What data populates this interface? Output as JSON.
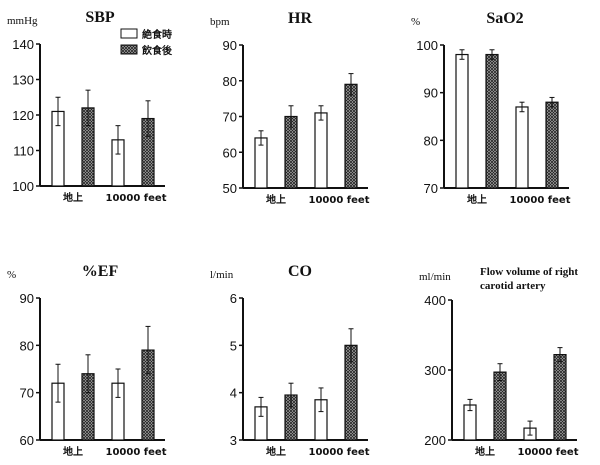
{
  "chart_data": [
    {
      "type": "bar",
      "title": "SBP",
      "ylabel": "mmHg",
      "ylim": [
        100,
        140
      ],
      "yticks": [
        100,
        110,
        120,
        130,
        140
      ],
      "categories": [
        "地上",
        "10000 feet"
      ],
      "series": [
        {
          "name": "絶食時",
          "values": [
            121,
            113
          ],
          "errors": [
            4,
            4
          ]
        },
        {
          "name": "飲食後",
          "values": [
            122,
            119
          ],
          "errors": [
            5,
            5
          ]
        }
      ]
    },
    {
      "type": "bar",
      "title": "HR",
      "ylabel": "bpm",
      "ylim": [
        50,
        90
      ],
      "yticks": [
        50,
        60,
        70,
        80,
        90
      ],
      "categories": [
        "地上",
        "10000 feet"
      ],
      "series": [
        {
          "name": "絶食時",
          "values": [
            64,
            71
          ],
          "errors": [
            2,
            2
          ]
        },
        {
          "name": "飲食後",
          "values": [
            70,
            79
          ],
          "errors": [
            3,
            3
          ]
        }
      ]
    },
    {
      "type": "bar",
      "title": "SaO2",
      "ylabel": "%",
      "ylim": [
        70,
        100
      ],
      "yticks": [
        70,
        80,
        90,
        100
      ],
      "categories": [
        "地上",
        "10000 feet"
      ],
      "series": [
        {
          "name": "絶食時",
          "values": [
            98,
            87
          ],
          "errors": [
            1,
            1
          ]
        },
        {
          "name": "飲食後",
          "values": [
            98,
            88
          ],
          "errors": [
            1,
            1
          ]
        }
      ]
    },
    {
      "type": "bar",
      "title": "%EF",
      "ylabel": "%",
      "ylim": [
        60,
        90
      ],
      "yticks": [
        60,
        70,
        80,
        90
      ],
      "categories": [
        "地上",
        "10000 feet"
      ],
      "series": [
        {
          "name": "絶食時",
          "values": [
            72,
            72
          ],
          "errors": [
            4,
            3
          ]
        },
        {
          "name": "飲食後",
          "values": [
            74,
            79
          ],
          "errors": [
            4,
            5
          ]
        }
      ]
    },
    {
      "type": "bar",
      "title": "CO",
      "ylabel": "l/min",
      "ylim": [
        3,
        6
      ],
      "yticks": [
        3,
        4,
        5,
        6
      ],
      "categories": [
        "地上",
        "10000 feet"
      ],
      "series": [
        {
          "name": "絶食時",
          "values": [
            3.7,
            3.85
          ],
          "errors": [
            0.2,
            0.25
          ]
        },
        {
          "name": "飲食後",
          "values": [
            3.95,
            5.0
          ],
          "errors": [
            0.25,
            0.35
          ]
        }
      ]
    },
    {
      "type": "bar",
      "title": "Flow volume of right carotid artery",
      "title_lines": [
        "Flow volume of right",
        "carotid artery"
      ],
      "ylabel": "ml/min",
      "ylim": [
        200,
        400
      ],
      "yticks": [
        200,
        300,
        400
      ],
      "categories": [
        "地上",
        "10000 feet"
      ],
      "series": [
        {
          "name": "絶食時",
          "values": [
            250,
            217
          ],
          "errors": [
            8,
            10
          ]
        },
        {
          "name": "飲食後",
          "values": [
            297,
            322
          ],
          "errors": [
            12,
            10
          ]
        }
      ]
    }
  ],
  "legend": {
    "items": [
      "絶食時",
      "飲食後"
    ],
    "placement": "top-right of first panel"
  },
  "colors": {
    "fasting": "#ffffff",
    "fed_hatch": "#222222",
    "axis": "#111111"
  }
}
